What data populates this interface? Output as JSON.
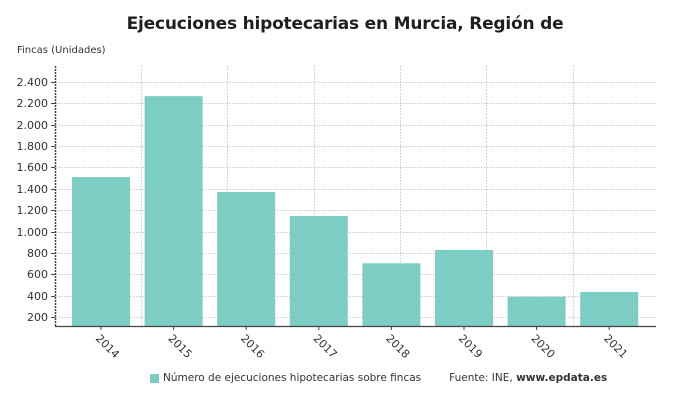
{
  "chart_data": {
    "type": "bar",
    "title": "Ejecuciones hipotecarias en Murcia, Región de",
    "ylabel": "Fincas (Unidades)",
    "xlabel": "",
    "categories": [
      "2014",
      "2015",
      "2016",
      "2017",
      "2018",
      "2019",
      "2020",
      "2021"
    ],
    "series": [
      {
        "name": "Número de ejecuciones hipotecarias sobre fincas",
        "color": "#7ccdc4",
        "values": [
          1510,
          2268,
          1370,
          1146,
          703,
          828,
          390,
          435
        ]
      }
    ],
    "yticks": [
      200,
      400,
      600,
      800,
      1000,
      1200,
      1400,
      1600,
      1800,
      2000,
      2200,
      2400
    ],
    "ytick_labels": [
      "200",
      "400",
      "600",
      "800",
      "1.000",
      "1.200",
      "1.400",
      "1.600",
      "1.800",
      "2.000",
      "2.200",
      "2.400"
    ],
    "ylim": [
      116,
      2550
    ],
    "grid": true,
    "legend_position": "bottom",
    "xtick_rotation": 45
  },
  "legend": {
    "series_label": "Número de ejecuciones hipotecarias sobre fincas",
    "source_prefix": "Fuente: INE, ",
    "source_site": "www.epdata.es"
  },
  "colors": {
    "bar": "#7ccdc4",
    "grid": "#c8c8c8",
    "axis": "#444444",
    "text": "#333333"
  }
}
